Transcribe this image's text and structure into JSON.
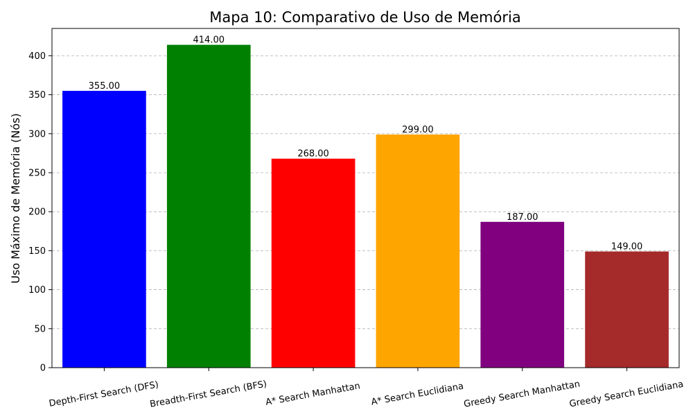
{
  "chart_data": {
    "type": "bar",
    "title": "Mapa 10: Comparativo de Uso de Memória",
    "xlabel": "",
    "ylabel": "Uso Máximo de Memória (Nós)",
    "categories": [
      "Depth-First Search (DFS)",
      "Breadth-First Search (BFS)",
      "A* Search Manhattan",
      "A* Search Euclidiana",
      "Greedy Search Manhattan",
      "Greedy Search Euclidiana"
    ],
    "values": [
      355,
      414,
      268,
      299,
      187,
      149
    ],
    "value_labels": [
      "355.00",
      "414.00",
      "268.00",
      "299.00",
      "187.00",
      "149.00"
    ],
    "colors": [
      "#0000ff",
      "#008000",
      "#ff0000",
      "#ffa500",
      "#800080",
      "#a52a2a"
    ],
    "ylim": [
      0,
      435
    ],
    "yticks": [
      0,
      50,
      100,
      150,
      200,
      250,
      300,
      350,
      400
    ],
    "ytick_labels": [
      "0",
      "50",
      "100",
      "150",
      "200",
      "250",
      "300",
      "350",
      "400"
    ],
    "grid": "horizontal dashed",
    "legend": "none"
  }
}
